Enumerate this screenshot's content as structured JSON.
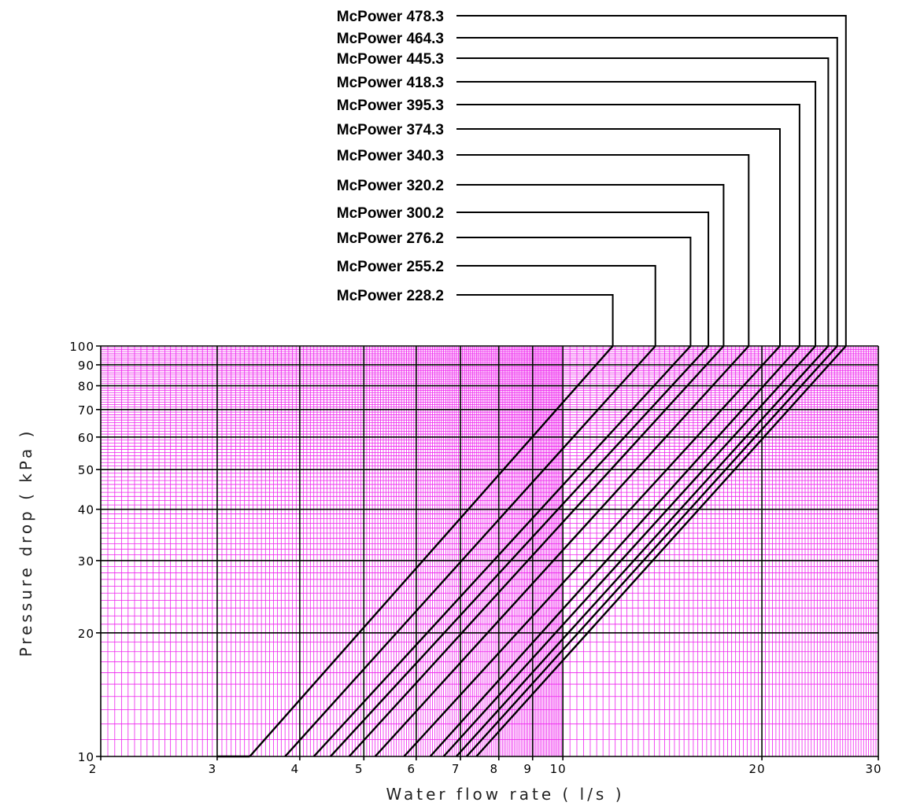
{
  "chart_data": {
    "type": "line",
    "xlabel": "Water flow rate ( l/s )",
    "ylabel": "Pressure drop ( kPa )",
    "x_scale": "log",
    "y_scale": "log",
    "xlim": [
      2,
      30
    ],
    "ylim": [
      10,
      100
    ],
    "x_ticks": [
      {
        "value": 2,
        "label": "2"
      },
      {
        "value": 3,
        "label": "3"
      },
      {
        "value": 4,
        "label": "4"
      },
      {
        "value": 5,
        "label": "5"
      },
      {
        "value": 6,
        "label": "6"
      },
      {
        "value": 7,
        "label": "7"
      },
      {
        "value": 8,
        "label": "8"
      },
      {
        "value": 9,
        "label": "9"
      },
      {
        "value": 10,
        "label": "10"
      },
      {
        "value": 20,
        "label": "20"
      },
      {
        "value": 30,
        "label": "30"
      }
    ],
    "y_ticks": [
      {
        "value": 10,
        "label": "10"
      },
      {
        "value": 20,
        "label": "20"
      },
      {
        "value": 30,
        "label": "30"
      },
      {
        "value": 40,
        "label": "40"
      },
      {
        "value": 50,
        "label": "50"
      },
      {
        "value": 60,
        "label": "60"
      },
      {
        "value": 70,
        "label": "70"
      },
      {
        "value": 80,
        "label": "80"
      },
      {
        "value": 90,
        "label": "90"
      },
      {
        "value": 100,
        "label": "100"
      }
    ],
    "grid": true,
    "grid_color": "#ee22ee",
    "line_color": "#000000",
    "background_color": "#ffffff",
    "series": [
      {
        "name": "McPower 228.2",
        "points": [
          [
            3.36,
            10
          ],
          [
            11.9,
            100
          ]
        ]
      },
      {
        "name": "McPower 255.2",
        "points": [
          [
            3.8,
            10
          ],
          [
            13.8,
            100
          ]
        ]
      },
      {
        "name": "McPower 276.2",
        "points": [
          [
            4.2,
            10
          ],
          [
            15.6,
            100
          ]
        ]
      },
      {
        "name": "McPower 300.2",
        "points": [
          [
            4.45,
            10
          ],
          [
            16.6,
            100
          ]
        ]
      },
      {
        "name": "McPower 320.2",
        "points": [
          [
            4.75,
            10
          ],
          [
            17.5,
            100
          ]
        ]
      },
      {
        "name": "McPower 340.3",
        "points": [
          [
            5.2,
            10
          ],
          [
            19.1,
            100
          ]
        ]
      },
      {
        "name": "McPower 374.3",
        "points": [
          [
            5.75,
            10
          ],
          [
            21.3,
            100
          ]
        ]
      },
      {
        "name": "McPower 395.3",
        "points": [
          [
            6.3,
            10
          ],
          [
            22.8,
            100
          ]
        ]
      },
      {
        "name": "McPower 418.3",
        "points": [
          [
            6.6,
            10
          ],
          [
            24.1,
            100
          ]
        ]
      },
      {
        "name": "McPower 445.3",
        "points": [
          [
            6.9,
            10
          ],
          [
            25.2,
            100
          ]
        ]
      },
      {
        "name": "McPower 464.3",
        "points": [
          [
            7.15,
            10
          ],
          [
            26.0,
            100
          ]
        ]
      },
      {
        "name": "McPower 478.3",
        "points": [
          [
            7.4,
            10
          ],
          [
            26.8,
            100
          ]
        ]
      }
    ]
  }
}
